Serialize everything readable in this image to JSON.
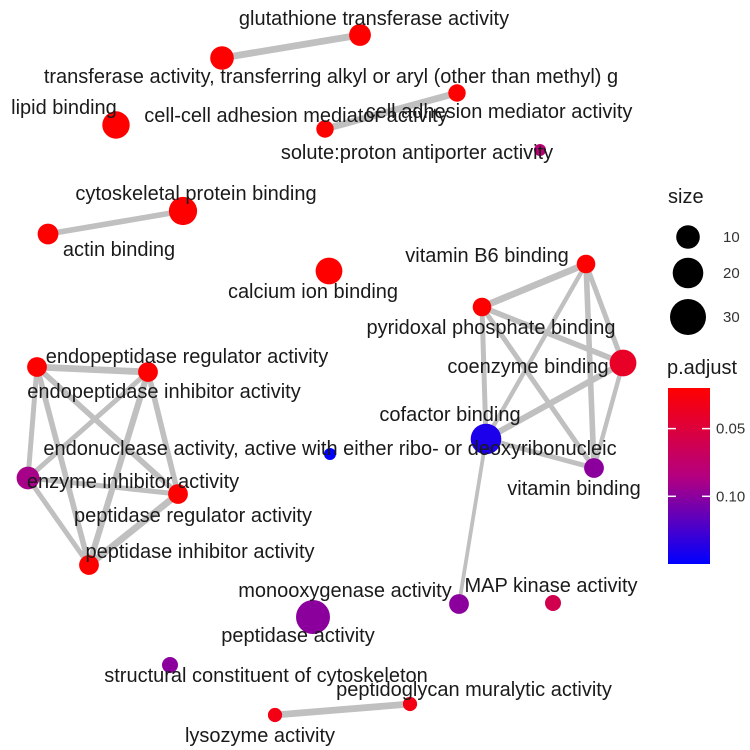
{
  "chart_data": {
    "type": "network",
    "nodes": [
      {
        "label": "glutathione transferase activity",
        "size": 8,
        "p_adjust": 0.02
      },
      {
        "label": "transferase activity, transferring alkyl or aryl (other than methyl) g",
        "size": 10,
        "p_adjust": 0.02
      },
      {
        "label": "lipid binding",
        "size": 15,
        "p_adjust": 0.02
      },
      {
        "label": "cell-cell adhesion mediator activity",
        "size": 4,
        "p_adjust": 0.02
      },
      {
        "label": "cell adhesion mediator activity",
        "size": 4,
        "p_adjust": 0.02
      },
      {
        "label": "solute:proton antiporter activity",
        "size": 1,
        "p_adjust": 0.08
      },
      {
        "label": "cytoskeletal protein binding",
        "size": 16,
        "p_adjust": 0.02
      },
      {
        "label": "actin binding",
        "size": 7,
        "p_adjust": 0.02
      },
      {
        "label": "calcium ion binding",
        "size": 14,
        "p_adjust": 0.02
      },
      {
        "label": "vitamin B6 binding",
        "size": 5,
        "p_adjust": 0.02
      },
      {
        "label": "pyridoxal phosphate binding",
        "size": 5,
        "p_adjust": 0.02
      },
      {
        "label": "coenzyme binding",
        "size": 14,
        "p_adjust": 0.04
      },
      {
        "label": "cofactor binding",
        "size": 20,
        "p_adjust": 0.14
      },
      {
        "label": "vitamin binding",
        "size": 6,
        "p_adjust": 0.1
      },
      {
        "label": "endopeptidase regulator activity",
        "size": 6,
        "p_adjust": 0.02
      },
      {
        "label": "endopeptidase inhibitor activity",
        "size": 6,
        "p_adjust": 0.02
      },
      {
        "label": "endonuclease activity, active with either ribo- or deoxyribonucleic",
        "size": 1,
        "p_adjust": 0.15
      },
      {
        "label": "enzyme inhibitor activity",
        "size": 9,
        "p_adjust": 0.09
      },
      {
        "label": "peptidase regulator activity",
        "size": 6,
        "p_adjust": 0.02
      },
      {
        "label": "peptidase inhibitor activity",
        "size": 6,
        "p_adjust": 0.02
      },
      {
        "label": "monooxygenase activity",
        "size": 6,
        "p_adjust": 0.1
      },
      {
        "label": "MAP kinase activity",
        "size": 3,
        "p_adjust": 0.06
      },
      {
        "label": "peptidase activity",
        "size": 26,
        "p_adjust": 0.1
      },
      {
        "label": "structural constituent of cytoskeleton",
        "size": 3,
        "p_adjust": 0.1
      },
      {
        "label": "peptidoglycan muralytic activity",
        "size": 2,
        "p_adjust": 0.03
      },
      {
        "label": "lysozyme activity",
        "size": 2,
        "p_adjust": 0.03
      }
    ],
    "edges": [
      {
        "source": "glutathione transferase activity",
        "target": "transferase activity, transferring alkyl or aryl (other than methyl) g",
        "weight": 0.8
      },
      {
        "source": "cell-cell adhesion mediator activity",
        "target": "cell adhesion mediator activity",
        "weight": 0.8
      },
      {
        "source": "cytoskeletal protein binding",
        "target": "actin binding",
        "weight": 0.6
      },
      {
        "source": "vitamin B6 binding",
        "target": "pyridoxal phosphate binding",
        "weight": 0.8
      },
      {
        "source": "vitamin B6 binding",
        "target": "coenzyme binding",
        "weight": 0.5
      },
      {
        "source": "vitamin B6 binding",
        "target": "cofactor binding",
        "weight": 0.4
      },
      {
        "source": "vitamin B6 binding",
        "target": "vitamin binding",
        "weight": 0.6
      },
      {
        "source": "pyridoxal phosphate binding",
        "target": "coenzyme binding",
        "weight": 0.6
      },
      {
        "source": "pyridoxal phosphate binding",
        "target": "cofactor binding",
        "weight": 0.5
      },
      {
        "source": "pyridoxal phosphate binding",
        "target": "vitamin binding",
        "weight": 0.5
      },
      {
        "source": "coenzyme binding",
        "target": "cofactor binding",
        "weight": 0.7
      },
      {
        "source": "coenzyme binding",
        "target": "vitamin binding",
        "weight": 0.4
      },
      {
        "source": "cofactor binding",
        "target": "vitamin binding",
        "weight": 0.5
      },
      {
        "source": "cofactor binding",
        "target": "monooxygenase activity",
        "weight": 0.3
      },
      {
        "source": "endopeptidase regulator activity",
        "target": "endopeptidase inhibitor activity",
        "weight": 0.8
      },
      {
        "source": "endopeptidase regulator activity",
        "target": "enzyme inhibitor activity",
        "weight": 0.5
      },
      {
        "source": "endopeptidase regulator activity",
        "target": "peptidase regulator activity",
        "weight": 0.6
      },
      {
        "source": "endopeptidase regulator activity",
        "target": "peptidase inhibitor activity",
        "weight": 0.6
      },
      {
        "source": "endopeptidase inhibitor activity",
        "target": "enzyme inhibitor activity",
        "weight": 0.5
      },
      {
        "source": "endopeptidase inhibitor activity",
        "target": "peptidase regulator activity",
        "weight": 0.6
      },
      {
        "source": "endopeptidase inhibitor activity",
        "target": "peptidase inhibitor activity",
        "weight": 0.7
      },
      {
        "source": "enzyme inhibitor activity",
        "target": "peptidase regulator activity",
        "weight": 0.5
      },
      {
        "source": "enzyme inhibitor activity",
        "target": "peptidase inhibitor activity",
        "weight": 0.5
      },
      {
        "source": "peptidase regulator activity",
        "target": "peptidase inhibitor activity",
        "weight": 0.8
      },
      {
        "source": "peptidoglycan muralytic activity",
        "target": "lysozyme activity",
        "weight": 0.8
      }
    ],
    "legend_size": {
      "title": "size",
      "breaks": [
        10,
        20,
        30
      ],
      "labels": [
        "10",
        "20",
        "30"
      ]
    },
    "legend_color": {
      "title": "p.adjust",
      "range": [
        0.02,
        0.15
      ],
      "ticks": [
        0.05,
        0.1
      ],
      "tick_labels": [
        "0.05",
        "0.10"
      ],
      "low_color": "#ff0000",
      "high_color": "#0000ff"
    },
    "edge_color": "#c0c0c0"
  }
}
